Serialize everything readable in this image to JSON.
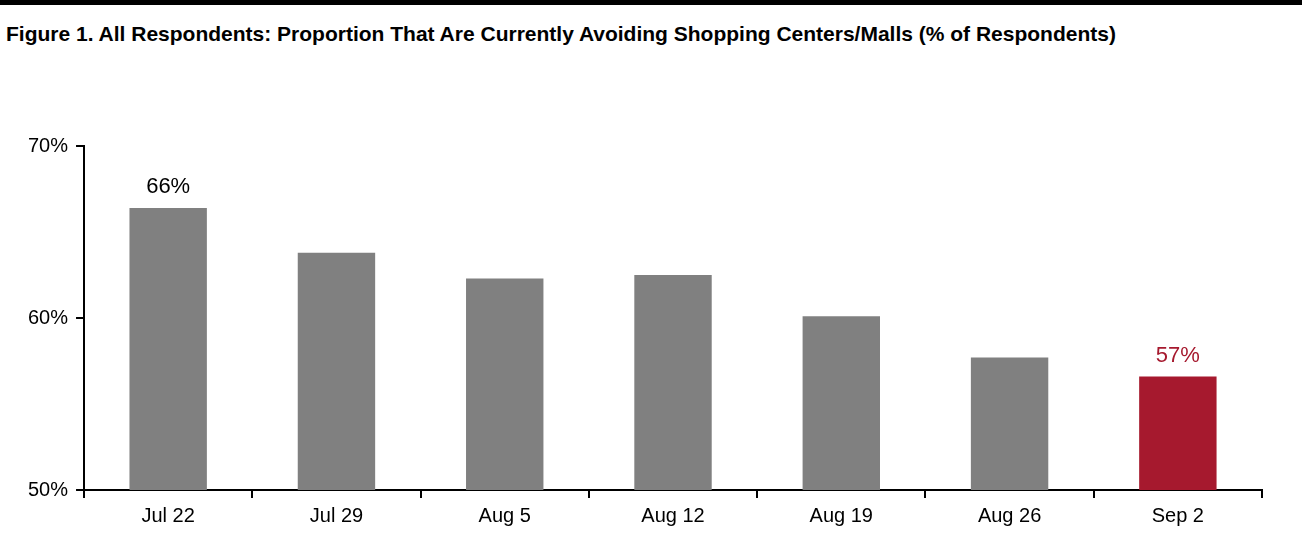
{
  "chart_data": {
    "type": "bar",
    "title": "Figure 1. All Respondents: Proportion That Are Currently Avoiding Shopping Centers/Malls (% of Respondents)",
    "categories": [
      "Jul 22",
      "Jul 29",
      "Aug 5",
      "Aug 12",
      "Aug 19",
      "Aug 26",
      "Sep 2"
    ],
    "values": [
      66.4,
      63.8,
      62.3,
      62.5,
      60.1,
      57.7,
      56.6
    ],
    "value_labels": [
      "66%",
      null,
      null,
      null,
      null,
      null,
      "57%"
    ],
    "color": "#808080",
    "colors": [
      "#808080",
      "#808080",
      "#808080",
      "#808080",
      "#808080",
      "#808080",
      "#a6192e"
    ],
    "ylim": [
      50,
      70
    ],
    "yticks": [
      {
        "value": 50,
        "label": "50%"
      },
      {
        "value": 60,
        "label": "60%"
      },
      {
        "value": 70,
        "label": "70%"
      }
    ],
    "grid": false,
    "data_labels": true
  }
}
